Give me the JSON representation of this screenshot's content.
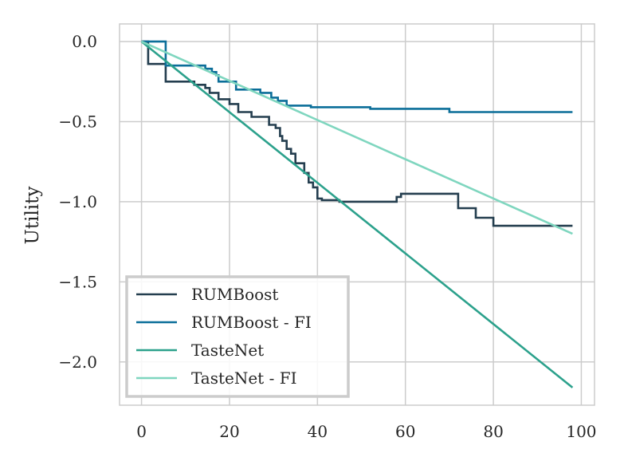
{
  "chart_data": {
    "type": "line",
    "title": "",
    "xlabel": "",
    "ylabel": "Utility",
    "xlim": [
      -5,
      103
    ],
    "ylim": [
      -2.27,
      0.11
    ],
    "x_ticks": [
      0,
      20,
      40,
      60,
      80,
      100
    ],
    "x_tick_labels": [
      "0",
      "20",
      "40",
      "60",
      "80",
      "100"
    ],
    "y_ticks": [
      0.0,
      -0.5,
      -1.0,
      -1.5,
      -2.0
    ],
    "y_tick_labels": [
      "0.0",
      "−0.5",
      "−1.0",
      "−1.5",
      "−2.0"
    ],
    "grid": true,
    "legend_position": "lower-left",
    "series": [
      {
        "name": "RUMBoost",
        "color": "#243e4f",
        "step": true,
        "points": [
          [
            0,
            0
          ],
          [
            1.5,
            0
          ],
          [
            1.5,
            -0.14
          ],
          [
            5.5,
            -0.14
          ],
          [
            5.5,
            -0.25
          ],
          [
            12,
            -0.25
          ],
          [
            12,
            -0.27
          ],
          [
            14.5,
            -0.27
          ],
          [
            14.5,
            -0.29
          ],
          [
            15.5,
            -0.29
          ],
          [
            15.5,
            -0.32
          ],
          [
            17.5,
            -0.32
          ],
          [
            17.5,
            -0.36
          ],
          [
            20,
            -0.36
          ],
          [
            20,
            -0.39
          ],
          [
            22,
            -0.39
          ],
          [
            22,
            -0.44
          ],
          [
            25,
            -0.44
          ],
          [
            25,
            -0.47
          ],
          [
            29,
            -0.47
          ],
          [
            29,
            -0.52
          ],
          [
            30.5,
            -0.52
          ],
          [
            30.5,
            -0.54
          ],
          [
            31.5,
            -0.54
          ],
          [
            31.5,
            -0.59
          ],
          [
            32,
            -0.59
          ],
          [
            32,
            -0.62
          ],
          [
            33,
            -0.62
          ],
          [
            33,
            -0.67
          ],
          [
            34,
            -0.67
          ],
          [
            34,
            -0.7
          ],
          [
            35,
            -0.7
          ],
          [
            35,
            -0.76
          ],
          [
            37,
            -0.76
          ],
          [
            37,
            -0.82
          ],
          [
            38,
            -0.82
          ],
          [
            38,
            -0.88
          ],
          [
            39,
            -0.88
          ],
          [
            39,
            -0.91
          ],
          [
            40,
            -0.91
          ],
          [
            40,
            -0.98
          ],
          [
            41,
            -0.98
          ],
          [
            41,
            -0.99
          ],
          [
            45,
            -0.99
          ],
          [
            45,
            -1.0
          ],
          [
            58,
            -1.0
          ],
          [
            58,
            -0.97
          ],
          [
            59,
            -0.97
          ],
          [
            59,
            -0.95
          ],
          [
            72,
            -0.95
          ],
          [
            72,
            -1.04
          ],
          [
            76,
            -1.04
          ],
          [
            76,
            -1.1
          ],
          [
            80,
            -1.1
          ],
          [
            80,
            -1.15
          ],
          [
            98,
            -1.15
          ]
        ]
      },
      {
        "name": "RUMBoost - FI",
        "color": "#0b6e99",
        "step": true,
        "points": [
          [
            0,
            0
          ],
          [
            5.5,
            0
          ],
          [
            5.5,
            -0.15
          ],
          [
            14.5,
            -0.15
          ],
          [
            14.5,
            -0.17
          ],
          [
            16,
            -0.17
          ],
          [
            16,
            -0.19
          ],
          [
            17,
            -0.19
          ],
          [
            17,
            -0.21
          ],
          [
            17.5,
            -0.21
          ],
          [
            17.5,
            -0.25
          ],
          [
            21.5,
            -0.25
          ],
          [
            21.5,
            -0.3
          ],
          [
            27,
            -0.3
          ],
          [
            27,
            -0.32
          ],
          [
            29.5,
            -0.32
          ],
          [
            29.5,
            -0.35
          ],
          [
            31,
            -0.35
          ],
          [
            31,
            -0.37
          ],
          [
            33,
            -0.37
          ],
          [
            33,
            -0.4
          ],
          [
            38.5,
            -0.4
          ],
          [
            38.5,
            -0.41
          ],
          [
            52,
            -0.41
          ],
          [
            52,
            -0.42
          ],
          [
            70,
            -0.42
          ],
          [
            70,
            -0.44
          ],
          [
            98,
            -0.44
          ]
        ]
      },
      {
        "name": "TasteNet",
        "color": "#2ca18c",
        "step": false,
        "points": [
          [
            0,
            0
          ],
          [
            98,
            -2.16
          ]
        ]
      },
      {
        "name": "TasteNet - FI",
        "color": "#7fd6bf",
        "step": false,
        "points": [
          [
            0,
            0
          ],
          [
            98,
            -1.2
          ]
        ]
      }
    ]
  }
}
